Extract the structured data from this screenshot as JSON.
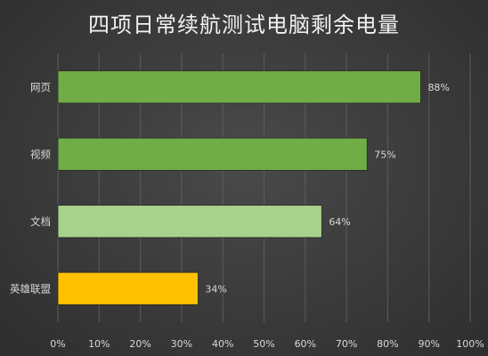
{
  "chart_data": {
    "type": "bar",
    "orientation": "horizontal",
    "title": "四项日常续航测试电脑剩余电量",
    "categories": [
      "网页",
      "视频",
      "文档",
      "英雄联盟"
    ],
    "values": [
      88,
      75,
      64,
      34
    ],
    "value_labels": [
      "88%",
      "75%",
      "64%",
      "34%"
    ],
    "colors": [
      "#70ad47",
      "#70ad47",
      "#a9d18e",
      "#ffc000"
    ],
    "xlim": [
      0,
      100
    ],
    "x_ticks": [
      0,
      10,
      20,
      30,
      40,
      50,
      60,
      70,
      80,
      90,
      100
    ],
    "x_tick_labels": [
      "0%",
      "10%",
      "20%",
      "30%",
      "40%",
      "50%",
      "60%",
      "70%",
      "80%",
      "90%",
      "100%"
    ],
    "grid": true,
    "legend": "none"
  }
}
